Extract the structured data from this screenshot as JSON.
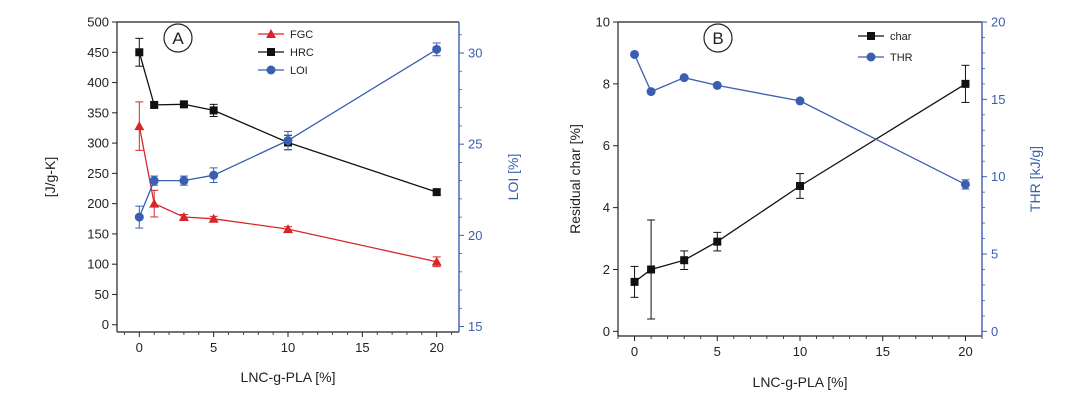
{
  "chart_data": [
    {
      "type": "line",
      "panel_label": "A",
      "xlabel": "LNC-g-PLA [%]",
      "ylabel": "[J/g-K]",
      "y2label": "LOI [%]",
      "xlim": [
        -1.5,
        21.5
      ],
      "xticks": [
        0,
        5,
        10,
        15,
        20
      ],
      "ylim": [
        -12,
        500
      ],
      "yticks": [
        0,
        50,
        100,
        150,
        200,
        250,
        300,
        350,
        400,
        450,
        500
      ],
      "y2lim": [
        14.7,
        31.7
      ],
      "y2ticks": [
        15,
        20,
        25,
        30
      ],
      "legend_position": "top-center",
      "series": [
        {
          "name": "FGC",
          "axis": "left",
          "color": "#d62728",
          "marker": "triangle",
          "x": [
            0,
            1,
            3,
            5,
            10,
            20
          ],
          "y": [
            328,
            200,
            178,
            175,
            158,
            104
          ],
          "err": [
            40,
            22,
            4,
            4,
            4,
            8
          ]
        },
        {
          "name": "HRC",
          "axis": "left",
          "color": "#111111",
          "marker": "square",
          "x": [
            0,
            1,
            3,
            5,
            10,
            20
          ],
          "y": [
            450,
            363,
            364,
            354,
            301,
            219
          ],
          "err": [
            23,
            4,
            5,
            10,
            12,
            4
          ]
        },
        {
          "name": "LOI",
          "axis": "right",
          "color": "#3a5fb0",
          "marker": "circle",
          "x": [
            0,
            1,
            3,
            5,
            10,
            20
          ],
          "y": [
            21.0,
            23.0,
            23.0,
            23.3,
            25.2,
            30.2
          ],
          "err": [
            0.6,
            0.25,
            0.25,
            0.4,
            0.5,
            0.35
          ]
        }
      ]
    },
    {
      "type": "line",
      "panel_label": "B",
      "xlabel": "LNC-g-PLA [%]",
      "ylabel": "Residual char [%]",
      "y2label": "THR [kJ/g]",
      "xlim": [
        -1,
        21
      ],
      "xticks": [
        0,
        5,
        10,
        15,
        20
      ],
      "ylim": [
        -0.15,
        10
      ],
      "yticks": [
        0,
        2,
        4,
        6,
        8,
        10
      ],
      "y2lim": [
        -0.3,
        20
      ],
      "y2ticks": [
        0,
        5,
        10,
        15,
        20
      ],
      "legend_position": "top-right",
      "series": [
        {
          "name": "char",
          "axis": "left",
          "color": "#111111",
          "marker": "square",
          "x": [
            0,
            1,
            3,
            5,
            10,
            20
          ],
          "y": [
            1.6,
            2.0,
            2.3,
            2.9,
            4.7,
            8.0
          ],
          "err": [
            0.5,
            1.6,
            0.3,
            0.3,
            0.4,
            0.6
          ]
        },
        {
          "name": "THR",
          "axis": "right",
          "color": "#3a5fb0",
          "marker": "circle",
          "x": [
            0,
            1,
            3,
            5,
            10,
            20
          ],
          "y": [
            17.9,
            15.5,
            16.4,
            15.9,
            14.9,
            9.5
          ],
          "err": [
            0,
            0,
            0,
            0,
            0,
            0.3
          ]
        }
      ]
    }
  ]
}
